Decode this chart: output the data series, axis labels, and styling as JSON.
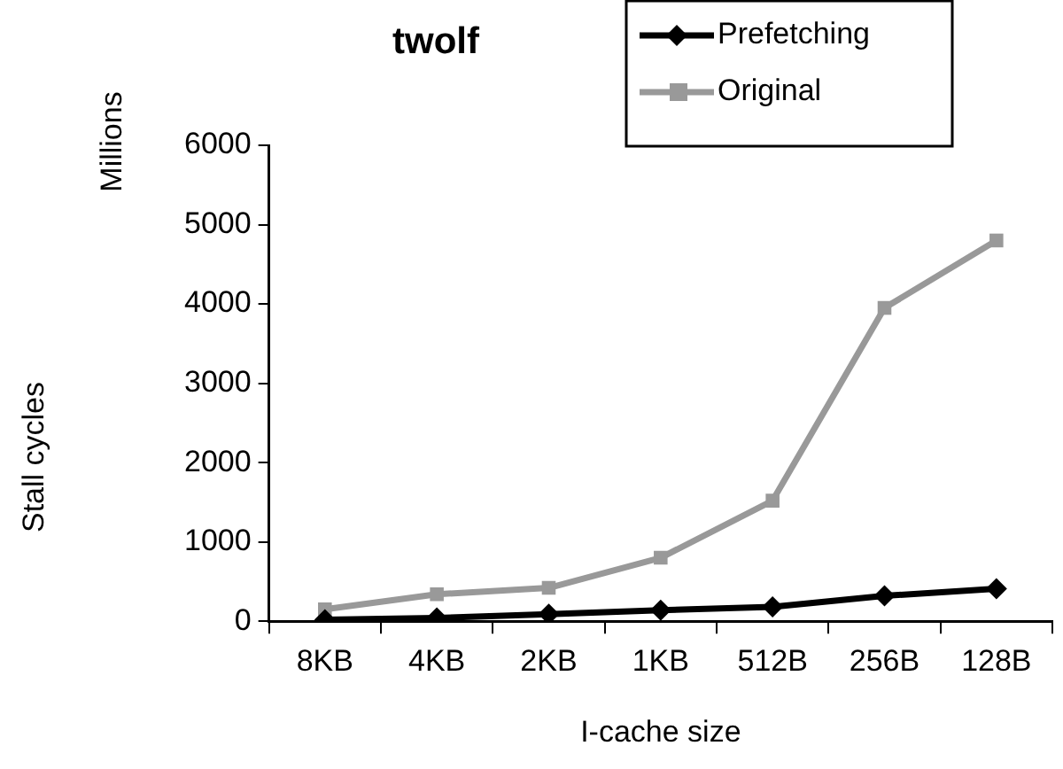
{
  "chart_data": {
    "type": "line",
    "title": "twolf",
    "xlabel": "I-cache size",
    "ylabel": "Stall cycles",
    "annotations": [
      "Millions"
    ],
    "categories": [
      "8KB",
      "4KB",
      "2KB",
      "1KB",
      "512B",
      "256B",
      "128B"
    ],
    "series": [
      {
        "name": "Prefetching",
        "color": "#000000",
        "marker": "diamond",
        "values": [
          20,
          40,
          90,
          140,
          180,
          320,
          410
        ]
      },
      {
        "name": "Original",
        "color": "#999999",
        "marker": "square",
        "values": [
          150,
          340,
          420,
          800,
          1520,
          3950,
          4800
        ]
      }
    ],
    "ylim": [
      0,
      6000
    ],
    "yticks": [
      0,
      1000,
      2000,
      3000,
      4000,
      5000,
      6000
    ],
    "grid": false,
    "legend": "top right",
    "line_style": "solid"
  }
}
